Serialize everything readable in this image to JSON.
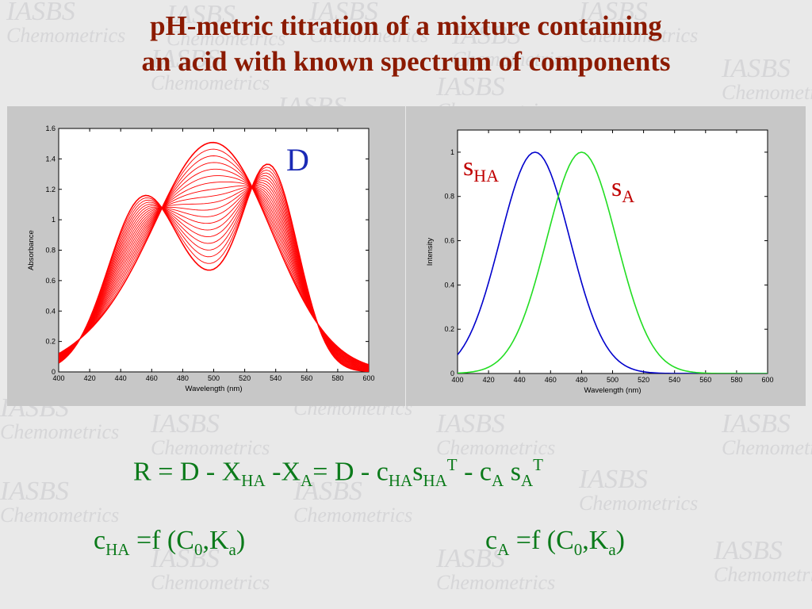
{
  "title": {
    "line1": "pH-metric titration of a mixture containing",
    "line2": "an acid with known spectrum of components"
  },
  "watermark": {
    "main": "IASBS",
    "sub": "Chemometrics"
  },
  "labels": {
    "D": "D",
    "sHA_s": "s",
    "sHA_sub": "HA",
    "sA_s": "s",
    "sA_sub": "A"
  },
  "equations": {
    "main": {
      "R": "R",
      "eq1": " = D - X",
      "HA": "HA",
      "minus": " -X",
      "A": "A",
      "eq2": "= D - c",
      "HA2": "HA",
      "s": "s",
      "HA3": "HA",
      "T": "T",
      "minus2": " - c",
      "A2": "A",
      "s2": " s",
      "A3": "A",
      "T2": "T"
    },
    "cha": {
      "c": "c",
      "HA": "HA",
      "eq": " =f (C",
      "zero": "0",
      "comma": ",K",
      "a": "a",
      "close": ")"
    },
    "ca": {
      "c": "c",
      "A": "A",
      "eq": " =f (C",
      "zero": "0",
      "comma": ",K",
      "a": "a",
      "close": ")"
    }
  },
  "colors": {
    "red": "#ff0000",
    "blue": "#0000cc",
    "green": "#22dd22",
    "title": "#8b1a00",
    "equation": "#0b7a1a"
  },
  "chart_data": [
    {
      "type": "line",
      "title": "",
      "xlabel": "Wavelength  (nm)",
      "ylabel": "Absorbance",
      "xlim": [
        400,
        600
      ],
      "ylim": [
        0,
        1.6
      ],
      "xticks": [
        400,
        420,
        440,
        460,
        480,
        500,
        520,
        540,
        560,
        580,
        600
      ],
      "yticks": [
        0,
        0.2,
        0.4,
        0.6,
        0.8,
        1,
        1.2,
        1.4,
        1.6
      ],
      "ytick_labels": [
        "0",
        "0.2",
        "0.4",
        "0.6",
        "0.8",
        "1",
        "1.2",
        "1.4",
        "1.6"
      ],
      "n_series": 20,
      "series_description": "Absorbance spectra during titration; each is a mixture of two bands, peak shifting from ~500 nm (max ~1.5) to a doublet at ~455 nm and ~537 nm (max ~1.25)",
      "x": [
        400,
        420,
        440,
        460,
        480,
        500,
        520,
        540,
        560,
        580,
        600
      ],
      "series_first": [
        0.13,
        0.35,
        0.72,
        1.05,
        1.36,
        1.5,
        1.3,
        0.8,
        0.38,
        0.14,
        0.05
      ],
      "series_last": [
        0.04,
        0.3,
        0.86,
        1.08,
        1.1,
        1.07,
        1.18,
        1.25,
        0.84,
        0.29,
        0.06
      ],
      "grid": false,
      "color": "#ff0000"
    },
    {
      "type": "line",
      "title": "",
      "xlabel": "Wavelength (nm)",
      "ylabel": "Intensity",
      "xlim": [
        400,
        600
      ],
      "ylim": [
        0,
        1.1
      ],
      "xticks": [
        400,
        420,
        440,
        460,
        480,
        500,
        520,
        540,
        560,
        580,
        600
      ],
      "yticks": [
        0,
        0.2,
        0.4,
        0.6,
        0.8,
        1
      ],
      "ytick_labels": [
        "0",
        "0.2",
        "0.4",
        "0.6",
        "0.8",
        "1"
      ],
      "series": [
        {
          "name": "sHA",
          "color": "#0000cc",
          "x": [
            400,
            420,
            440,
            450,
            460,
            480,
            500,
            520,
            540,
            560,
            600
          ],
          "y": [
            0.14,
            0.56,
            0.95,
            1.0,
            0.95,
            0.56,
            0.2,
            0.04,
            0.01,
            0.0,
            0.0
          ]
        },
        {
          "name": "sA",
          "color": "#22dd22",
          "x": [
            400,
            420,
            440,
            460,
            480,
            500,
            520,
            540,
            560,
            580,
            600
          ],
          "y": [
            0.01,
            0.04,
            0.2,
            0.56,
            1.0,
            0.78,
            0.34,
            0.08,
            0.01,
            0.0,
            0.0
          ]
        }
      ],
      "grid": false
    }
  ]
}
